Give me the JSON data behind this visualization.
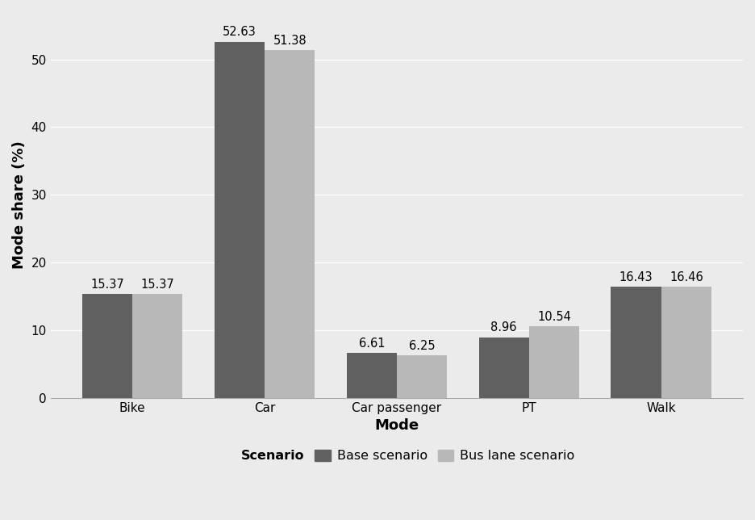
{
  "categories": [
    "Bike",
    "Car",
    "Car passenger",
    "PT",
    "Walk"
  ],
  "base_values": [
    15.37,
    52.63,
    6.61,
    8.96,
    16.43
  ],
  "bus_values": [
    15.37,
    51.38,
    6.25,
    10.54,
    16.46
  ],
  "base_color": "#606060",
  "bus_color": "#b8b8b8",
  "background_color": "#ebebeb",
  "plot_bg_color": "#ebebeb",
  "xlabel": "Mode",
  "ylabel": "Mode share (%)",
  "ylim": [
    0,
    57
  ],
  "legend_title": "Scenario",
  "legend_base": "Base scenario",
  "legend_bus": "Bus lane scenario",
  "bar_width": 0.38,
  "label_fontsize": 10.5,
  "axis_label_fontsize": 13,
  "tick_fontsize": 11,
  "legend_fontsize": 11.5
}
